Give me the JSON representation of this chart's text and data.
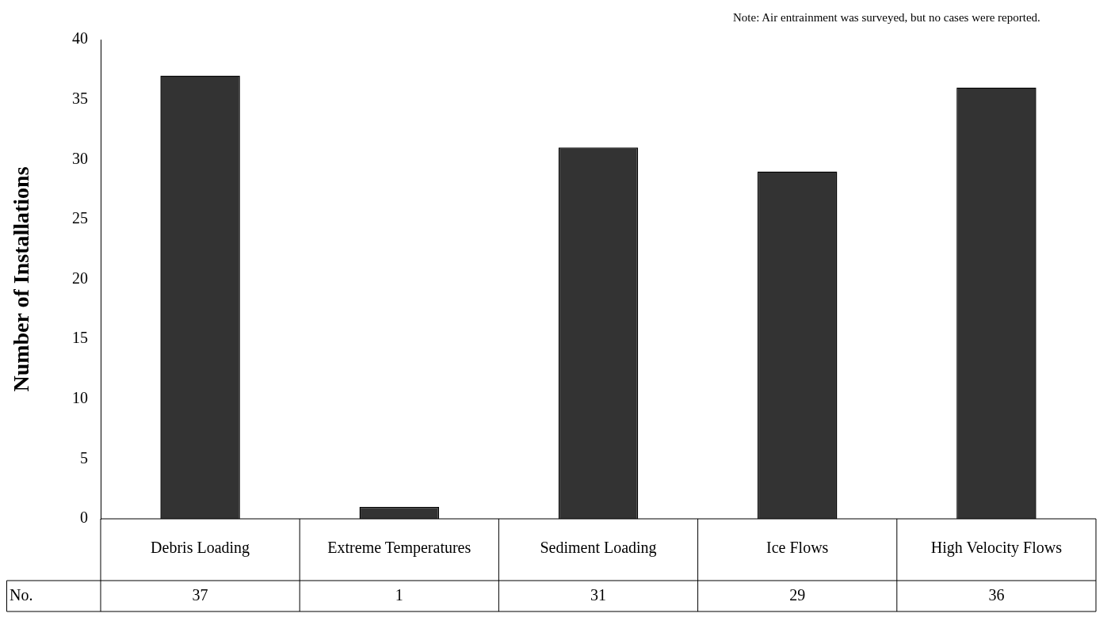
{
  "chart_data": {
    "type": "bar",
    "ylabel": "Number of Installations",
    "categories": [
      "Debris Loading",
      "Extreme Temperatures",
      "Sediment Loading",
      "Ice Flows",
      "High Velocity Flows"
    ],
    "values": [
      37,
      1,
      31,
      29,
      36
    ],
    "color": "#333333",
    "ylim": [
      0,
      40
    ],
    "yticks": [
      0,
      5,
      10,
      15,
      20,
      25,
      30,
      35,
      40
    ],
    "grid": false,
    "legend": false,
    "data_labels": true,
    "annotations": [
      "Note: Air entrainment was surveyed, but no cases were reported.",
      "No."
    ]
  }
}
